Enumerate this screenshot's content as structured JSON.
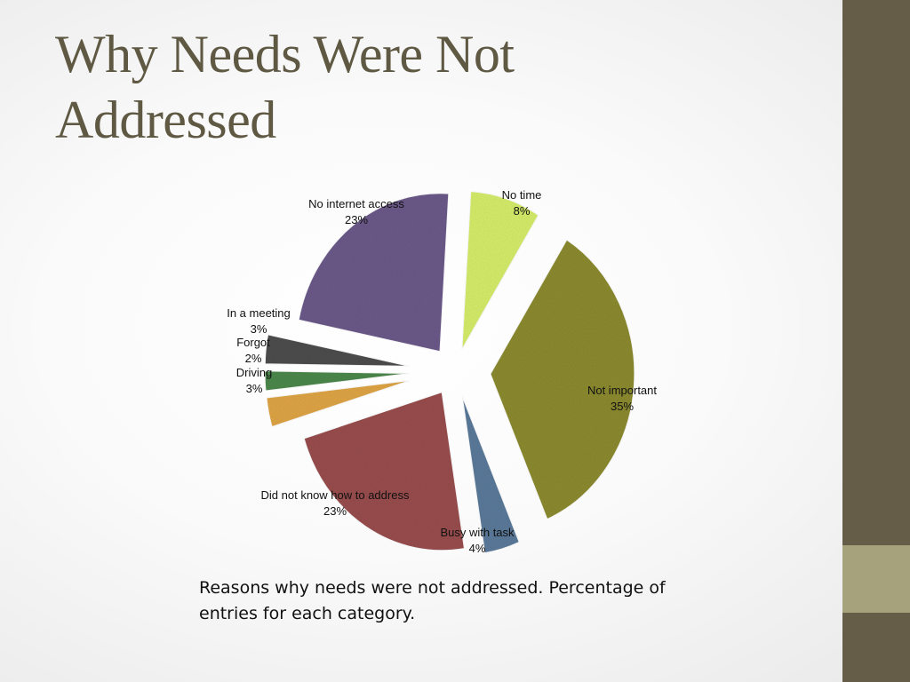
{
  "slide": {
    "title": "Why Needs Were Not Addressed",
    "caption": "Reasons why needs were not addressed. Percentage of entries for each category."
  },
  "colors": {
    "sidebar": "#655d48",
    "sidebar_accent": "#a6a27c",
    "title": "#5f5944"
  },
  "chart_data": {
    "type": "pie",
    "exploded": true,
    "slices": [
      {
        "label": "No time",
        "percent_label": "8%",
        "value": 8,
        "color": "#d8f06c"
      },
      {
        "label": "Not important",
        "percent_label": "35%",
        "value": 35,
        "color": "#8e8d31"
      },
      {
        "label": "Busy with task",
        "percent_label": "4%",
        "value": 4,
        "color": "#5d7c9c"
      },
      {
        "label": "Did not know how to address",
        "percent_label": "23%",
        "value": 23,
        "color": "#9b4f4f"
      },
      {
        "label": "Driving",
        "percent_label": "3%",
        "value": 3,
        "color": "#e2a746"
      },
      {
        "label": "Forgot",
        "percent_label": "2%",
        "value": 2,
        "color": "#4d8a4d"
      },
      {
        "label": "In a meeting",
        "percent_label": "3%",
        "value": 3,
        "color": "#4f4f4f"
      },
      {
        "label": "No internet access",
        "percent_label": "23%",
        "value": 23,
        "color": "#6d5b8c"
      }
    ]
  }
}
